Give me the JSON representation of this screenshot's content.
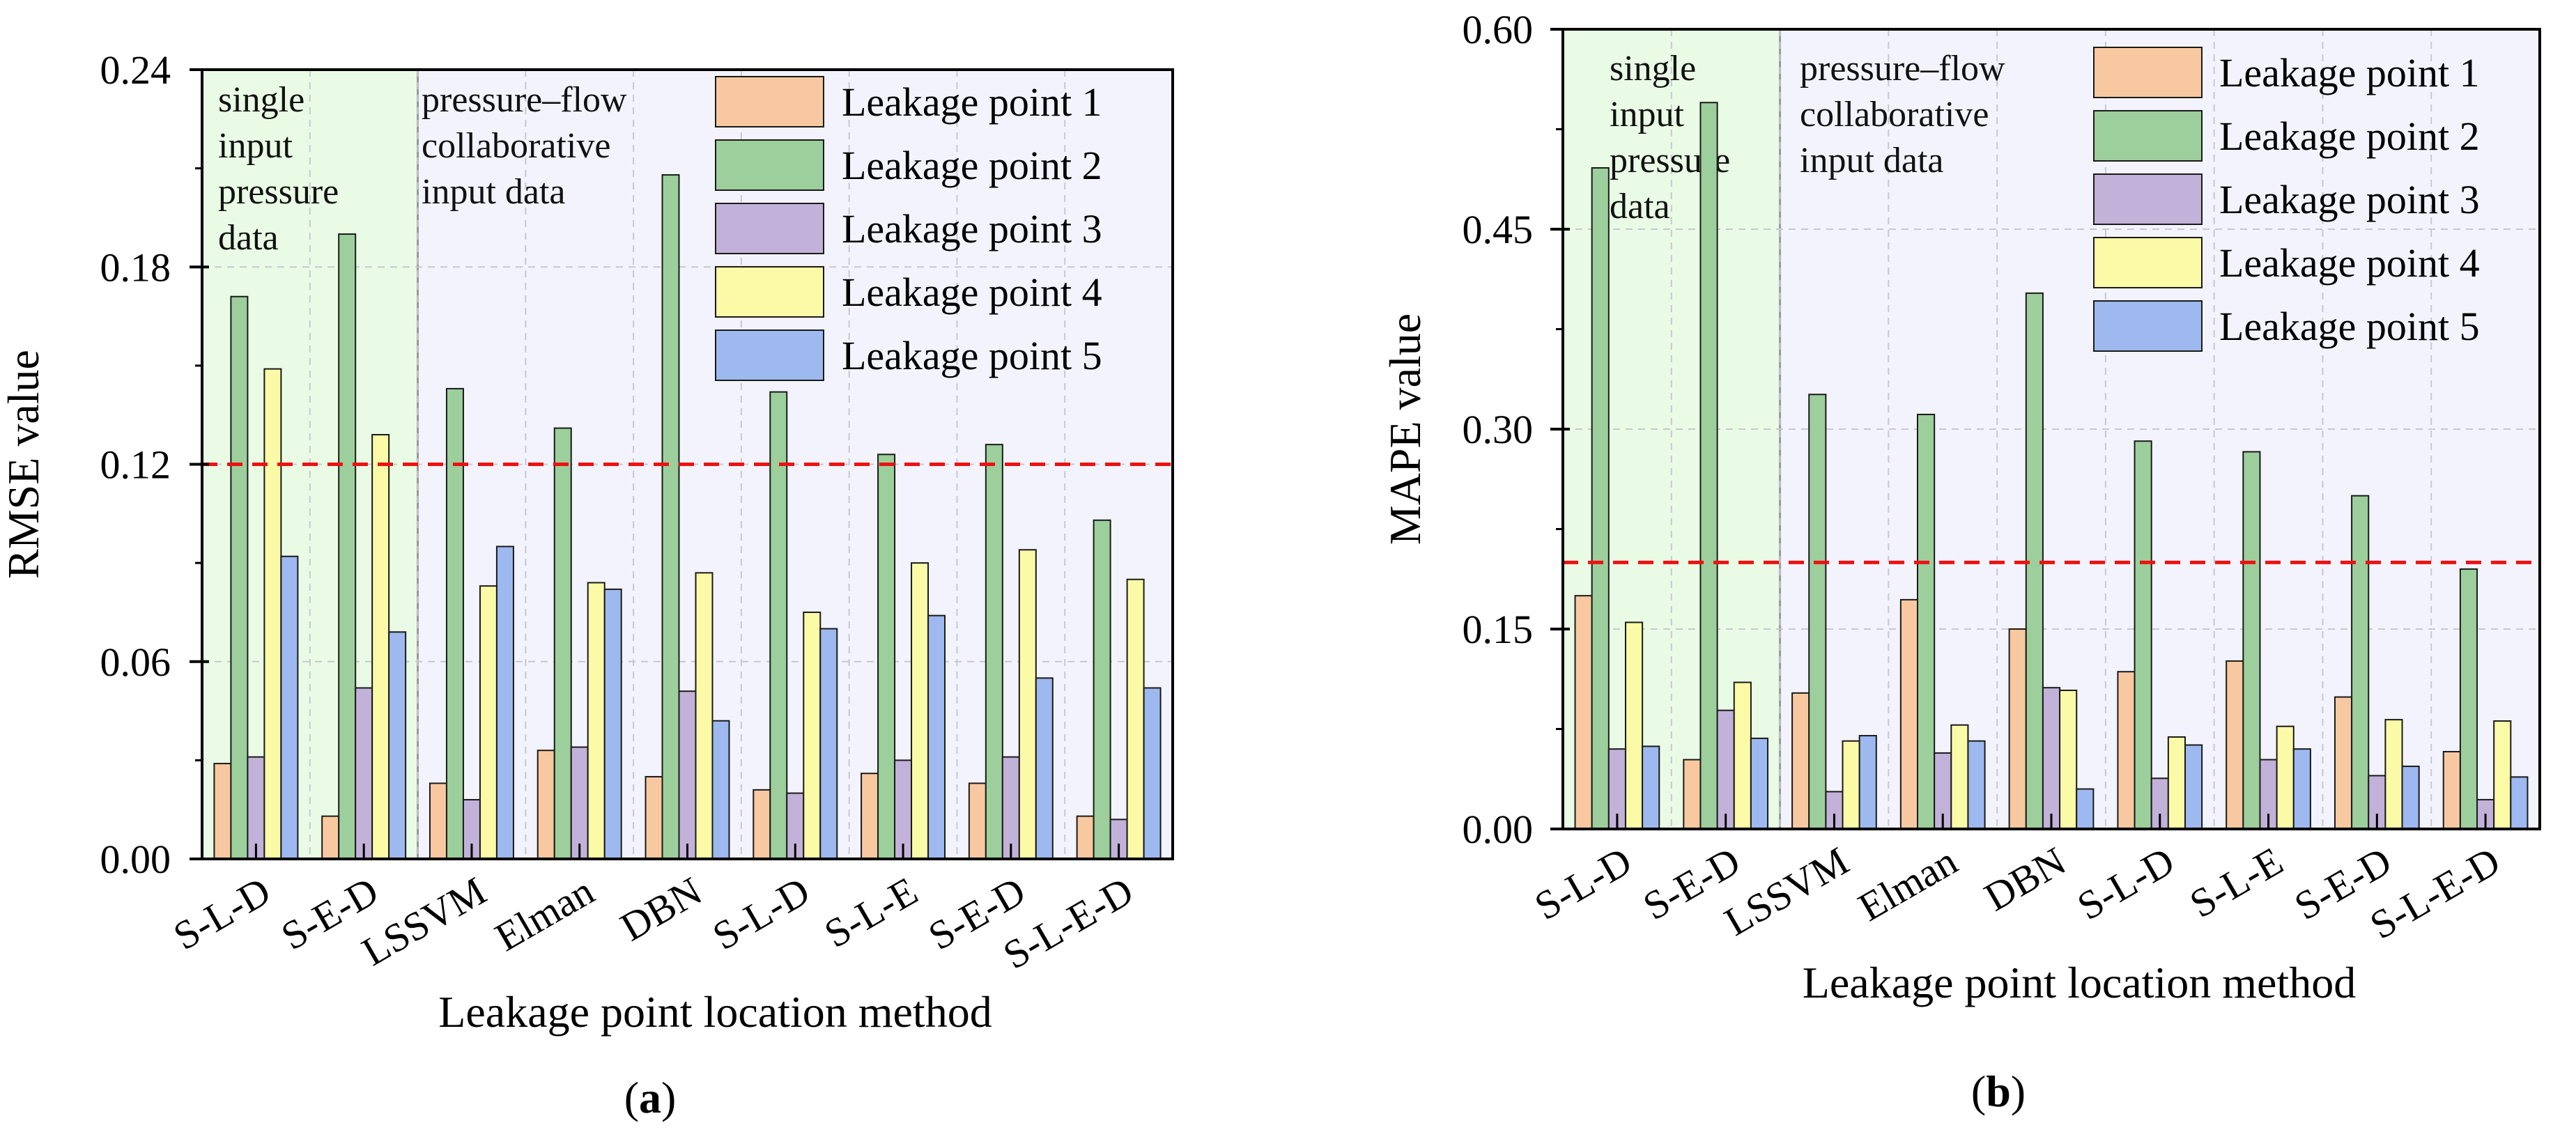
{
  "figure": {
    "caption_a_open": "(",
    "caption_a_letter": "a",
    "caption_a_close": ")",
    "caption_b_open": "(",
    "caption_b_letter": "b",
    "caption_b_close": ")"
  },
  "colors": {
    "Leakage point 1": "#f8c9a0",
    "Leakage point 2": "#9ccf9c",
    "Leakage point 3": "#c2b1d8",
    "Leakage point 4": "#fbfaa6",
    "Leakage point 5": "#9db9ef",
    "green_region": "#e9fbe5",
    "lavender_region": "#f3f3fd",
    "threshold": "#ee1111"
  },
  "chart_data": [
    {
      "id": "a",
      "type": "bar",
      "xlabel": "Leakage point location method",
      "ylabel": "RMSE value",
      "ylim": [
        0,
        0.24
      ],
      "yticks": [
        "0.00",
        "0.06",
        "0.12",
        "0.18",
        "0.24"
      ],
      "categories": [
        "S-L-D",
        "S-E-D",
        "LSSVM",
        "Elman",
        "DBN",
        "S-L-D",
        "S-L-E",
        "S-E-D",
        "S-L-E-D"
      ],
      "series": [
        {
          "name": "Leakage point 1",
          "values": [
            0.029,
            0.013,
            0.023,
            0.033,
            0.025,
            0.021,
            0.026,
            0.023,
            0.013
          ]
        },
        {
          "name": "Leakage point 2",
          "values": [
            0.171,
            0.19,
            0.143,
            0.131,
            0.208,
            0.142,
            0.123,
            0.126,
            0.103
          ]
        },
        {
          "name": "Leakage point 3",
          "values": [
            0.031,
            0.052,
            0.018,
            0.034,
            0.051,
            0.02,
            0.03,
            0.031,
            0.012
          ]
        },
        {
          "name": "Leakage point 4",
          "values": [
            0.149,
            0.129,
            0.083,
            0.084,
            0.087,
            0.075,
            0.09,
            0.094,
            0.085
          ]
        },
        {
          "name": "Leakage point 5",
          "values": [
            0.092,
            0.069,
            0.095,
            0.082,
            0.042,
            0.07,
            0.074,
            0.055,
            0.052
          ]
        }
      ],
      "threshold": 0.12,
      "regions": [
        {
          "label": "single input pressure data",
          "lines": [
            "single",
            "input",
            "pressure",
            "data"
          ]
        },
        {
          "label": "pressure–flow collaborative input data",
          "lines": [
            "pressure–flow",
            "collaborative",
            "input data"
          ]
        }
      ],
      "legend": "top-right",
      "grid": true
    },
    {
      "id": "b",
      "type": "bar",
      "xlabel": "Leakage point location method",
      "ylabel": "MAPE value",
      "ylim": [
        0,
        0.6
      ],
      "yticks": [
        "0.00",
        "0.15",
        "0.30",
        "0.45",
        "0.60"
      ],
      "categories": [
        "S-L-D",
        "S-E-D",
        "LSSVM",
        "Elman",
        "DBN",
        "S-L-D",
        "S-L-E",
        "S-E-D",
        "S-L-E-D"
      ],
      "series": [
        {
          "name": "Leakage point 1",
          "values": [
            0.175,
            0.052,
            0.102,
            0.172,
            0.15,
            0.118,
            0.126,
            0.099,
            0.058
          ]
        },
        {
          "name": "Leakage point 2",
          "values": [
            0.496,
            0.545,
            0.326,
            0.311,
            0.402,
            0.291,
            0.283,
            0.25,
            0.195
          ]
        },
        {
          "name": "Leakage point 3",
          "values": [
            0.06,
            0.089,
            0.028,
            0.057,
            0.106,
            0.038,
            0.052,
            0.04,
            0.022
          ]
        },
        {
          "name": "Leakage point 4",
          "values": [
            0.155,
            0.11,
            0.066,
            0.078,
            0.104,
            0.069,
            0.077,
            0.082,
            0.081
          ]
        },
        {
          "name": "Leakage point 5",
          "values": [
            0.062,
            0.068,
            0.07,
            0.066,
            0.03,
            0.063,
            0.06,
            0.047,
            0.039
          ]
        }
      ],
      "threshold": 0.2,
      "regions": [
        {
          "label": "single input pressure data",
          "lines": [
            "single",
            "input",
            "pressure",
            "data"
          ]
        },
        {
          "label": "pressure–flow collaborative input data",
          "lines": [
            "pressure–flow",
            "collaborative",
            "input data"
          ]
        }
      ],
      "legend": "top-right",
      "grid": true
    }
  ]
}
